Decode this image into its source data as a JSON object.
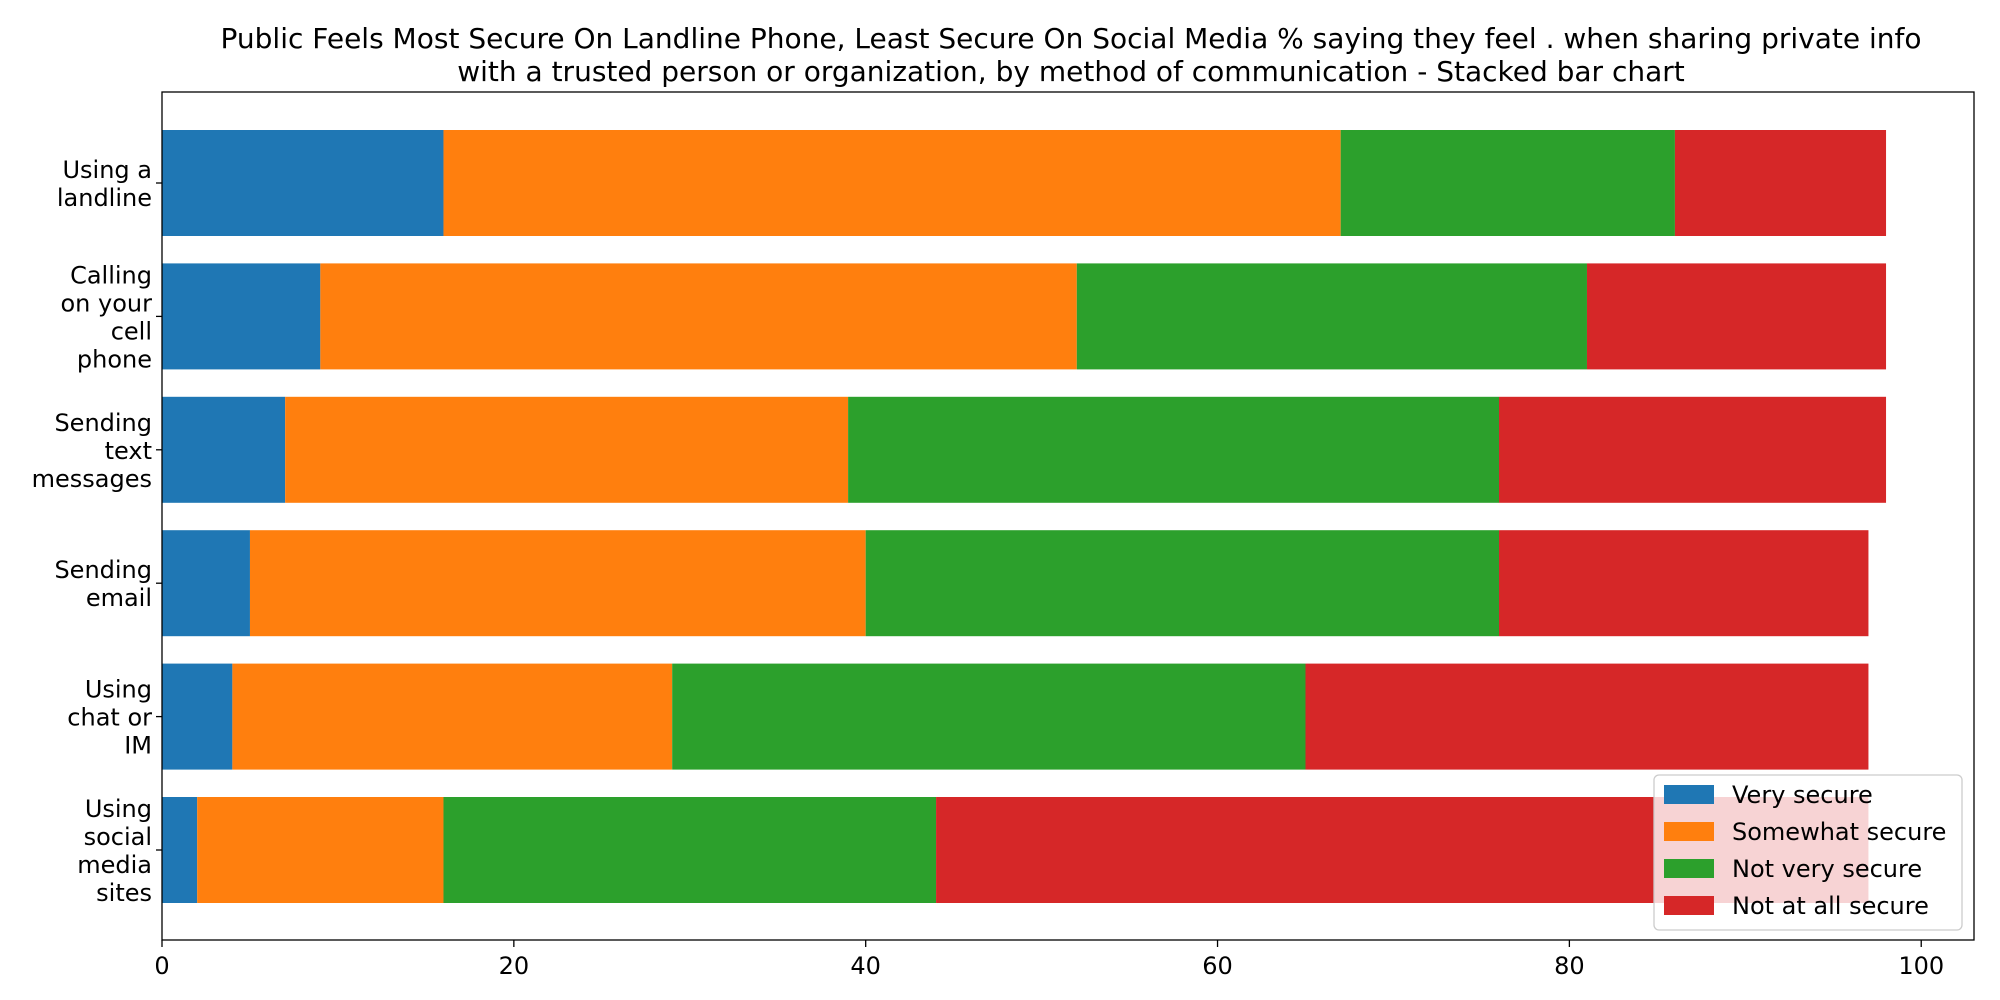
{
  "chart_data": {
    "type": "bar",
    "orientation": "horizontal",
    "stacked": true,
    "title_lines": [
      "Public Feels Most Secure On Landline Phone, Least Secure On Social Media % saying they feel . when sharing private info",
      "with a trusted person or organization, by method of communication  - Stacked bar chart"
    ],
    "categories": [
      [
        "Using a",
        "landline"
      ],
      [
        "Calling",
        "on your",
        "cell",
        "phone"
      ],
      [
        "Sending",
        "text",
        "messages"
      ],
      [
        "Sending",
        "email"
      ],
      [
        "Using",
        "chat or",
        "IM"
      ],
      [
        "Using",
        "social",
        "media",
        "sites"
      ]
    ],
    "series": [
      {
        "name": "Very secure",
        "color": "#1f77b4",
        "values": [
          16,
          9,
          7,
          5,
          4,
          2
        ]
      },
      {
        "name": "Somewhat secure",
        "color": "#ff7f0e",
        "values": [
          51,
          43,
          32,
          35,
          25,
          14
        ]
      },
      {
        "name": "Not very secure",
        "color": "#2ca02c",
        "values": [
          19,
          29,
          37,
          36,
          36,
          28
        ]
      },
      {
        "name": "Not at all secure",
        "color": "#d62728",
        "values": [
          12,
          17,
          22,
          21,
          32,
          53
        ]
      }
    ],
    "x_ticks": [
      0,
      20,
      40,
      60,
      80,
      100
    ],
    "xlim": [
      0,
      103
    ],
    "xlabel": "",
    "ylabel": "",
    "grid": false,
    "legend_position": "lower-right"
  }
}
